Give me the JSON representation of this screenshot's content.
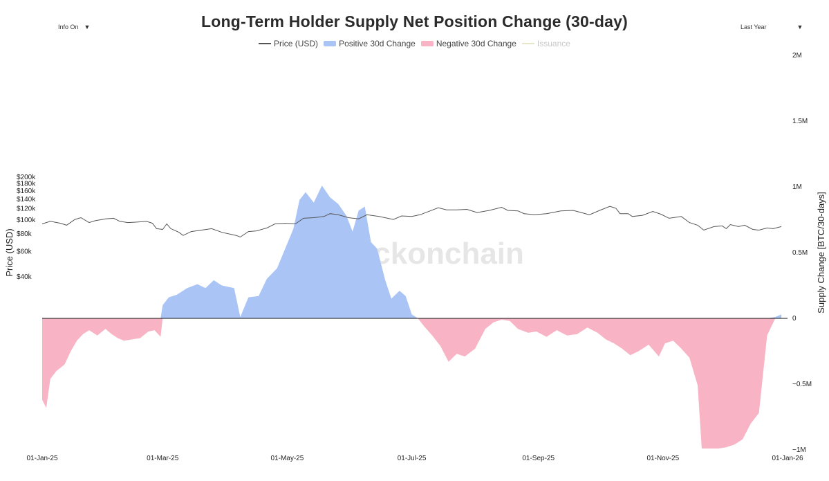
{
  "header": {
    "title": "Long-Term Holder Supply Net Position Change (30-day)",
    "info_dropdown": "Info On",
    "range_dropdown": "Last Year",
    "caret": "▼"
  },
  "legend": [
    {
      "label": "Price (USD)",
      "color": "#555555",
      "kind": "line",
      "enabled": true
    },
    {
      "label": "Positive 30d Change",
      "color": "#a9c4f5",
      "kind": "fill",
      "enabled": true
    },
    {
      "label": "Negative 30d Change",
      "color": "#f8b4c4",
      "kind": "fill",
      "enabled": true
    },
    {
      "label": "Issuance",
      "color": "#e6e6c8",
      "kind": "line",
      "enabled": false
    }
  ],
  "watermark": "_checkonchain",
  "chart_data": {
    "type": "area",
    "title": "Long-Term Holder Supply Net Position Change (30-day)",
    "x_ticks": [
      "01-Jan-25",
      "01-Mar-25",
      "01-May-25",
      "01-Jul-25",
      "01-Sep-25",
      "01-Nov-25",
      "01-Jan-26"
    ],
    "x_tick_dates": [
      "2025-01-01",
      "2025-03-01",
      "2025-05-01",
      "2025-07-01",
      "2025-09-01",
      "2025-11-01",
      "2026-01-01"
    ],
    "x_range": [
      "2025-01-01",
      "2026-01-01"
    ],
    "left_axis": {
      "label": "Price (USD)",
      "scale": "log",
      "range": [
        38000,
        210000
      ],
      "ticks": [
        {
          "value": 40000,
          "label": "$40k"
        },
        {
          "value": 60000,
          "label": "$60k"
        },
        {
          "value": 80000,
          "label": "$80k"
        },
        {
          "value": 100000,
          "label": "$100k"
        },
        {
          "value": 120000,
          "label": "$120k"
        },
        {
          "value": 140000,
          "label": "$140k"
        },
        {
          "value": 160000,
          "label": "$160k"
        },
        {
          "value": 180000,
          "label": "$180k"
        },
        {
          "value": 200000,
          "label": "$200k"
        }
      ]
    },
    "right_axis": {
      "label": "Supply Change [BTC/30-days]",
      "scale": "linear",
      "range": [
        -1000000,
        2000000
      ],
      "ticks": [
        {
          "value": -1000000,
          "label": "−1M"
        },
        {
          "value": -500000,
          "label": "−0.5M"
        },
        {
          "value": 0,
          "label": "0"
        },
        {
          "value": 500000,
          "label": "0.5M"
        },
        {
          "value": 1000000,
          "label": "1M"
        },
        {
          "value": 1500000,
          "label": "1.5M"
        },
        {
          "value": 2000000,
          "label": "2M"
        }
      ]
    },
    "series": [
      {
        "name": "Price (USD)",
        "axis": "left",
        "color": "#555555",
        "points": [
          [
            "2025-01-01",
            94000
          ],
          [
            "2025-01-05",
            98000
          ],
          [
            "2025-01-10",
            95000
          ],
          [
            "2025-01-13",
            92000
          ],
          [
            "2025-01-17",
            101000
          ],
          [
            "2025-01-20",
            104000
          ],
          [
            "2025-01-24",
            96000
          ],
          [
            "2025-01-27",
            99000
          ],
          [
            "2025-02-01",
            102000
          ],
          [
            "2025-02-05",
            103000
          ],
          [
            "2025-02-08",
            98000
          ],
          [
            "2025-02-12",
            96000
          ],
          [
            "2025-02-17",
            97000
          ],
          [
            "2025-02-21",
            98000
          ],
          [
            "2025-02-24",
            95000
          ],
          [
            "2025-02-26",
            87000
          ],
          [
            "2025-03-01",
            86000
          ],
          [
            "2025-03-03",
            94000
          ],
          [
            "2025-03-05",
            87000
          ],
          [
            "2025-03-09",
            82000
          ],
          [
            "2025-03-11",
            78000
          ],
          [
            "2025-03-15",
            83000
          ],
          [
            "2025-03-20",
            85000
          ],
          [
            "2025-03-25",
            87000
          ],
          [
            "2025-03-30",
            82000
          ],
          [
            "2025-04-06",
            78000
          ],
          [
            "2025-04-08",
            76000
          ],
          [
            "2025-04-12",
            83000
          ],
          [
            "2025-04-16",
            84000
          ],
          [
            "2025-04-21",
            88000
          ],
          [
            "2025-04-25",
            94000
          ],
          [
            "2025-04-30",
            95000
          ],
          [
            "2025-05-05",
            94000
          ],
          [
            "2025-05-09",
            103000
          ],
          [
            "2025-05-14",
            104000
          ],
          [
            "2025-05-19",
            106000
          ],
          [
            "2025-05-22",
            111000
          ],
          [
            "2025-05-26",
            109000
          ],
          [
            "2025-05-31",
            104000
          ],
          [
            "2025-06-05",
            102000
          ],
          [
            "2025-06-09",
            109000
          ],
          [
            "2025-06-15",
            106000
          ],
          [
            "2025-06-22",
            101000
          ],
          [
            "2025-06-26",
            107000
          ],
          [
            "2025-07-01",
            106000
          ],
          [
            "2025-07-05",
            109000
          ],
          [
            "2025-07-10",
            116000
          ],
          [
            "2025-07-14",
            122000
          ],
          [
            "2025-07-18",
            118000
          ],
          [
            "2025-07-23",
            118000
          ],
          [
            "2025-07-28",
            119000
          ],
          [
            "2025-08-02",
            113000
          ],
          [
            "2025-08-08",
            117000
          ],
          [
            "2025-08-14",
            123000
          ],
          [
            "2025-08-17",
            117000
          ],
          [
            "2025-08-22",
            116000
          ],
          [
            "2025-08-25",
            111000
          ],
          [
            "2025-08-30",
            109000
          ],
          [
            "2025-09-05",
            111000
          ],
          [
            "2025-09-12",
            116000
          ],
          [
            "2025-09-18",
            117000
          ],
          [
            "2025-09-22",
            113000
          ],
          [
            "2025-09-26",
            109000
          ],
          [
            "2025-10-01",
            117000
          ],
          [
            "2025-10-06",
            125000
          ],
          [
            "2025-10-09",
            121000
          ],
          [
            "2025-10-11",
            111000
          ],
          [
            "2025-10-15",
            111000
          ],
          [
            "2025-10-17",
            106000
          ],
          [
            "2025-10-22",
            108000
          ],
          [
            "2025-10-27",
            115000
          ],
          [
            "2025-10-31",
            110000
          ],
          [
            "2025-11-04",
            103000
          ],
          [
            "2025-11-10",
            106000
          ],
          [
            "2025-11-14",
            96000
          ],
          [
            "2025-11-18",
            92000
          ],
          [
            "2025-11-21",
            85000
          ],
          [
            "2025-11-26",
            90000
          ],
          [
            "2025-11-30",
            91000
          ],
          [
            "2025-12-02",
            87000
          ],
          [
            "2025-12-04",
            93000
          ],
          [
            "2025-12-08",
            90000
          ],
          [
            "2025-12-11",
            92000
          ],
          [
            "2025-12-15",
            86000
          ],
          [
            "2025-12-18",
            85000
          ],
          [
            "2025-12-22",
            88000
          ],
          [
            "2025-12-25",
            87000
          ],
          [
            "2025-12-29",
            90000
          ]
        ]
      },
      {
        "name": "Positive 30d Change",
        "axis": "right",
        "color": "#a9c4f5",
        "fill": "positive"
      },
      {
        "name": "Negative 30d Change",
        "axis": "right",
        "color": "#f8b4c4",
        "fill": "negative"
      },
      {
        "name": "LTH Net Position Change (30d)",
        "axis": "right",
        "role": "values",
        "points": [
          [
            "2025-01-01",
            -620000
          ],
          [
            "2025-01-03",
            -680000
          ],
          [
            "2025-01-05",
            -460000
          ],
          [
            "2025-01-08",
            -400000
          ],
          [
            "2025-01-12",
            -350000
          ],
          [
            "2025-01-15",
            -250000
          ],
          [
            "2025-01-18",
            -170000
          ],
          [
            "2025-01-21",
            -120000
          ],
          [
            "2025-01-24",
            -90000
          ],
          [
            "2025-01-28",
            -130000
          ],
          [
            "2025-02-01",
            -80000
          ],
          [
            "2025-02-04",
            -120000
          ],
          [
            "2025-02-07",
            -150000
          ],
          [
            "2025-02-10",
            -170000
          ],
          [
            "2025-02-14",
            -160000
          ],
          [
            "2025-02-18",
            -150000
          ],
          [
            "2025-02-22",
            -100000
          ],
          [
            "2025-02-25",
            -90000
          ],
          [
            "2025-02-28",
            -140000
          ],
          [
            "2025-03-01",
            100000
          ],
          [
            "2025-03-04",
            160000
          ],
          [
            "2025-03-08",
            180000
          ],
          [
            "2025-03-13",
            230000
          ],
          [
            "2025-03-18",
            260000
          ],
          [
            "2025-03-22",
            230000
          ],
          [
            "2025-03-26",
            290000
          ],
          [
            "2025-03-30",
            250000
          ],
          [
            "2025-04-05",
            230000
          ],
          [
            "2025-04-08",
            10000
          ],
          [
            "2025-04-12",
            160000
          ],
          [
            "2025-04-17",
            170000
          ],
          [
            "2025-04-21",
            300000
          ],
          [
            "2025-04-26",
            380000
          ],
          [
            "2025-04-30",
            530000
          ],
          [
            "2025-05-04",
            680000
          ],
          [
            "2025-05-07",
            900000
          ],
          [
            "2025-05-10",
            960000
          ],
          [
            "2025-05-14",
            880000
          ],
          [
            "2025-05-18",
            1010000
          ],
          [
            "2025-05-22",
            920000
          ],
          [
            "2025-05-26",
            870000
          ],
          [
            "2025-05-30",
            780000
          ],
          [
            "2025-06-02",
            660000
          ],
          [
            "2025-06-05",
            820000
          ],
          [
            "2025-06-08",
            850000
          ],
          [
            "2025-06-11",
            580000
          ],
          [
            "2025-06-14",
            530000
          ],
          [
            "2025-06-18",
            290000
          ],
          [
            "2025-06-21",
            150000
          ],
          [
            "2025-06-25",
            210000
          ],
          [
            "2025-06-28",
            170000
          ],
          [
            "2025-07-01",
            30000
          ],
          [
            "2025-07-04",
            0
          ],
          [
            "2025-07-07",
            -60000
          ],
          [
            "2025-07-11",
            -130000
          ],
          [
            "2025-07-15",
            -210000
          ],
          [
            "2025-07-19",
            -330000
          ],
          [
            "2025-07-23",
            -270000
          ],
          [
            "2025-07-27",
            -290000
          ],
          [
            "2025-08-01",
            -230000
          ],
          [
            "2025-08-06",
            -80000
          ],
          [
            "2025-08-10",
            -30000
          ],
          [
            "2025-08-14",
            -10000
          ],
          [
            "2025-08-18",
            -20000
          ],
          [
            "2025-08-22",
            -80000
          ],
          [
            "2025-08-27",
            -110000
          ],
          [
            "2025-08-31",
            -100000
          ],
          [
            "2025-09-05",
            -140000
          ],
          [
            "2025-09-10",
            -90000
          ],
          [
            "2025-09-15",
            -130000
          ],
          [
            "2025-09-20",
            -120000
          ],
          [
            "2025-09-25",
            -70000
          ],
          [
            "2025-09-30",
            -110000
          ],
          [
            "2025-10-04",
            -160000
          ],
          [
            "2025-10-08",
            -190000
          ],
          [
            "2025-10-12",
            -230000
          ],
          [
            "2025-10-16",
            -280000
          ],
          [
            "2025-10-20",
            -250000
          ],
          [
            "2025-10-25",
            -200000
          ],
          [
            "2025-10-30",
            -290000
          ],
          [
            "2025-11-02",
            -190000
          ],
          [
            "2025-11-06",
            -170000
          ],
          [
            "2025-11-10",
            -230000
          ],
          [
            "2025-11-14",
            -300000
          ],
          [
            "2025-11-18",
            -510000
          ],
          [
            "2025-11-20",
            -990000
          ],
          [
            "2025-11-24",
            -990000
          ],
          [
            "2025-11-28",
            -990000
          ],
          [
            "2025-12-02",
            -980000
          ],
          [
            "2025-12-06",
            -960000
          ],
          [
            "2025-12-10",
            -920000
          ],
          [
            "2025-12-14",
            -800000
          ],
          [
            "2025-12-18",
            -720000
          ],
          [
            "2025-12-22",
            -130000
          ],
          [
            "2025-12-26",
            10000
          ],
          [
            "2025-12-29",
            30000
          ]
        ]
      }
    ],
    "legend_position": "top-center",
    "grid": false
  }
}
